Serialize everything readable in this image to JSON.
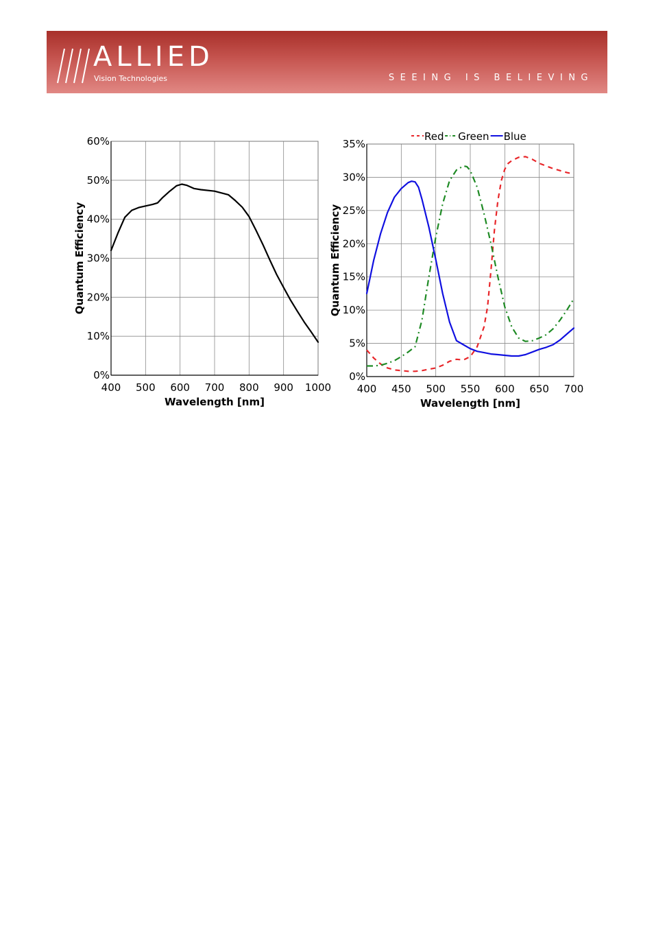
{
  "header": {
    "brand": "ALLIED",
    "brand_sub": "Vision Technologies",
    "tagline": "SEEING IS BELIEVING",
    "banner_color": "#b8403a"
  },
  "chart_data": [
    {
      "type": "line",
      "title": "",
      "xlabel": "Wavelength [nm]",
      "ylabel": "Quantum Efficiency",
      "xlim": [
        400,
        1000
      ],
      "ylim": [
        0,
        60
      ],
      "xticks": [
        "400",
        "500",
        "600",
        "700",
        "800",
        "900",
        "1000"
      ],
      "yticks": [
        "0%",
        "10%",
        "20%",
        "30%",
        "40%",
        "50%",
        "60%"
      ],
      "grid": true,
      "series": [
        {
          "color": "#000000",
          "dash": "",
          "x": [
            400,
            420,
            440,
            460,
            480,
            500,
            520,
            535,
            550,
            570,
            590,
            605,
            620,
            640,
            660,
            700,
            740,
            760,
            780,
            800,
            820,
            840,
            860,
            880,
            900,
            920,
            940,
            960,
            980,
            1000
          ],
          "y": [
            32,
            36.5,
            40.5,
            42.3,
            43,
            43.4,
            43.8,
            44.2,
            45.6,
            47.2,
            48.6,
            49,
            48.7,
            47.9,
            47.6,
            47.2,
            46.3,
            44.8,
            43.1,
            40.7,
            37.2,
            33.5,
            29.6,
            25.8,
            22.5,
            19.3,
            16.4,
            13.6,
            11.1,
            8.5
          ]
        }
      ]
    },
    {
      "type": "line",
      "title": "",
      "xlabel": "Wavelength [nm]",
      "ylabel": "Quantum Efficiency",
      "xlim": [
        400,
        700
      ],
      "ylim": [
        0,
        35
      ],
      "xticks": [
        "400",
        "450",
        "500",
        "550",
        "600",
        "650",
        "700"
      ],
      "yticks": [
        "0%",
        "5%",
        "10%",
        "15%",
        "20%",
        "25%",
        "30%",
        "35%"
      ],
      "grid": true,
      "legend": "top",
      "series": [
        {
          "name": "Red",
          "color": "#e8262a",
          "dash": "7,6",
          "x": [
            400,
            410,
            420,
            430,
            440,
            450,
            460,
            470,
            480,
            490,
            500,
            510,
            520,
            530,
            540,
            550,
            560,
            570,
            575,
            580,
            585,
            590,
            595,
            600,
            605,
            610,
            620,
            630,
            640,
            650,
            660,
            670,
            680,
            690,
            700
          ],
          "y": [
            4,
            2.8,
            1.9,
            1.3,
            1,
            0.9,
            0.8,
            0.8,
            0.9,
            1.1,
            1.3,
            1.7,
            2.3,
            2.6,
            2.5,
            3,
            4.5,
            7.5,
            10.5,
            16,
            22,
            26.5,
            29.5,
            31.2,
            32.1,
            32.5,
            33,
            33.1,
            32.7,
            32.1,
            31.7,
            31.3,
            31,
            30.7,
            30.5
          ]
        },
        {
          "name": "Green",
          "color": "#1e8a24",
          "dash": "9,5,2,5",
          "x": [
            400,
            410,
            420,
            430,
            440,
            450,
            460,
            470,
            480,
            490,
            500,
            510,
            520,
            530,
            540,
            545,
            550,
            560,
            570,
            580,
            590,
            600,
            610,
            620,
            630,
            640,
            650,
            660,
            670,
            680,
            690,
            700
          ],
          "y": [
            1.6,
            1.6,
            1.7,
            2,
            2.4,
            3,
            3.7,
            4.5,
            8.5,
            15,
            21,
            26,
            29.5,
            31.1,
            31.7,
            31.6,
            31,
            28.5,
            24.5,
            20,
            15,
            10.5,
            7.5,
            5.8,
            5.3,
            5.4,
            5.8,
            6.3,
            7.2,
            8.5,
            10,
            11.7
          ]
        },
        {
          "name": "Blue",
          "color": "#1010e0",
          "dash": "",
          "x": [
            400,
            410,
            420,
            430,
            440,
            450,
            460,
            465,
            470,
            475,
            480,
            490,
            500,
            510,
            520,
            530,
            540,
            550,
            560,
            570,
            580,
            590,
            600,
            610,
            620,
            630,
            640,
            650,
            660,
            670,
            680,
            690,
            700
          ],
          "y": [
            12.5,
            17.5,
            21.5,
            24.7,
            27,
            28.3,
            29.2,
            29.4,
            29.3,
            28.5,
            26.7,
            22.5,
            17.6,
            12.5,
            8.2,
            5.4,
            4.8,
            4.2,
            3.8,
            3.6,
            3.4,
            3.3,
            3.2,
            3.1,
            3.1,
            3.3,
            3.7,
            4.1,
            4.4,
            4.8,
            5.5,
            6.4,
            7.3
          ]
        }
      ]
    }
  ]
}
